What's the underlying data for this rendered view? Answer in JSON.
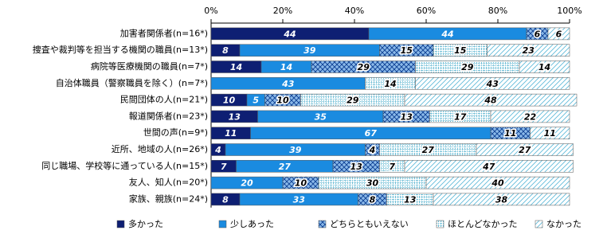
{
  "chart_data": {
    "type": "stacked-bar-horizontal",
    "categories": [
      "加害者関係者(n=16*)",
      "捜査や裁判等を担当する機関の職員(n=13*)",
      "病院等医療機関の職員(n=7*)",
      "自治体職員（警察職員を除く）(n=7*)",
      "民間団体の人(n=21*)",
      "報道関係者(n=23*)",
      "世間の声(n=9*)",
      "近所、地域の人(n=26*)",
      "同じ職場、学校等に通っている人(n=15*)",
      "友人、知人(n=20*)",
      "家族、親族(n=24*)"
    ],
    "series": [
      {
        "name": "多かった",
        "color": "#0e1f73",
        "values": [
          44,
          8,
          14,
          null,
          10,
          13,
          11,
          4,
          7,
          null,
          8
        ]
      },
      {
        "name": "少しあった",
        "color": "#1a8be0",
        "values": [
          44,
          39,
          14,
          43,
          5,
          35,
          67,
          39,
          27,
          20,
          33
        ]
      },
      {
        "name": "どちらともいえない",
        "color": "#2a7fd6",
        "values": [
          6,
          15,
          29,
          null,
          10,
          13,
          11,
          4,
          13,
          10,
          8
        ]
      },
      {
        "name": "ほとんどなかった",
        "color": "#3aa6c8",
        "values": [
          null,
          15,
          29,
          14,
          29,
          17,
          null,
          27,
          7,
          30,
          13
        ]
      },
      {
        "name": "なかった",
        "color": "#5bb8d8",
        "values": [
          6,
          23,
          14,
          43,
          48,
          22,
          11,
          27,
          47,
          40,
          38
        ]
      }
    ],
    "xlim": [
      0,
      100
    ],
    "xticks": [
      {
        "value": 0,
        "label": "0%"
      },
      {
        "value": 20,
        "label": "20%"
      },
      {
        "value": 40,
        "label": "40%"
      },
      {
        "value": 60,
        "label": "60%"
      },
      {
        "value": 80,
        "label": "80%"
      },
      {
        "value": 100,
        "label": "100%"
      }
    ]
  }
}
